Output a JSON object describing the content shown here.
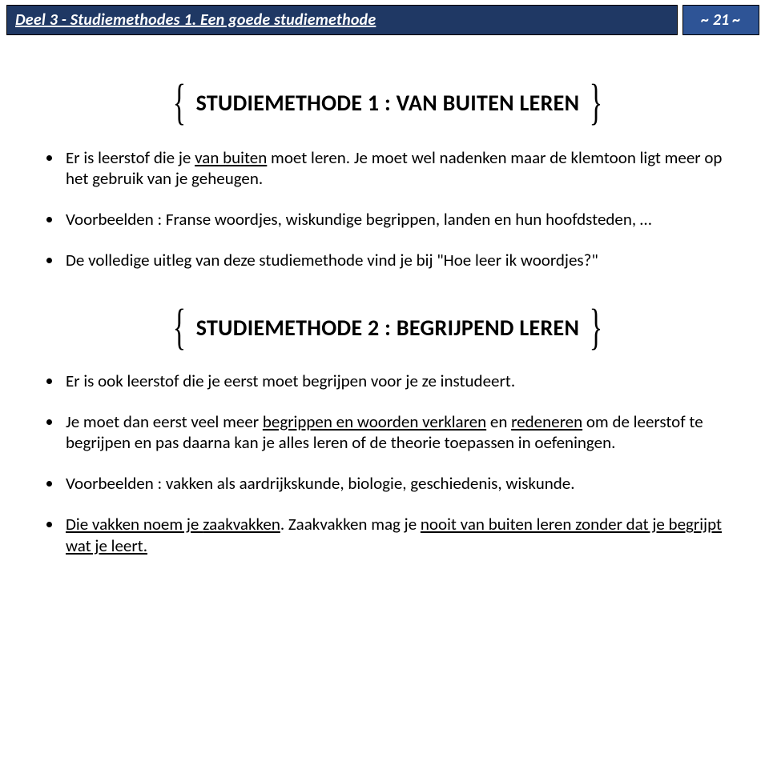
{
  "header": {
    "left": "Deel 3 - Studiemethodes  1.  Een goede studiemethode",
    "right": "~ 21 ~"
  },
  "section1": {
    "title": "STUDIEMETHODE 1 : VAN BUITEN LEREN",
    "b1_a": "Er is leerstof die je ",
    "b1_u": "van buiten",
    "b1_b": " moet leren. Je moet wel nadenken maar de klemtoon ligt meer op het gebruik van je geheugen.",
    "b2": "Voorbeelden : Franse woordjes, wiskundige begrippen, landen en hun hoofdsteden, …",
    "b3": "De volledige uitleg van deze studiemethode vind je bij \"Hoe leer ik woordjes?\""
  },
  "section2": {
    "title": "STUDIEMETHODE 2 : BEGRIJPEND LEREN",
    "b1": "Er is ook leerstof die je eerst moet begrijpen voor je ze instudeert.",
    "b2_a": "Je moet dan eerst veel meer ",
    "b2_u1": "begrippen en woorden verklaren",
    "b2_b": " en ",
    "b2_u2": "redeneren",
    "b2_c": " om de leerstof te begrijpen en pas daarna kan je alles leren of de theorie toepassen in oefeningen.",
    "b3": "Voorbeelden : vakken als aardrijkskunde, biologie, geschiedenis, wiskunde.",
    "b4_a": "Die vakken noem je ",
    "b4_u1": "zaakvakken",
    "b4_b": ". Zaakvakken mag je ",
    "b4_u2": "nooit van buiten leren zonder dat je begrijpt wat je leert."
  },
  "braces": {
    "open": "{",
    "close": "}"
  }
}
